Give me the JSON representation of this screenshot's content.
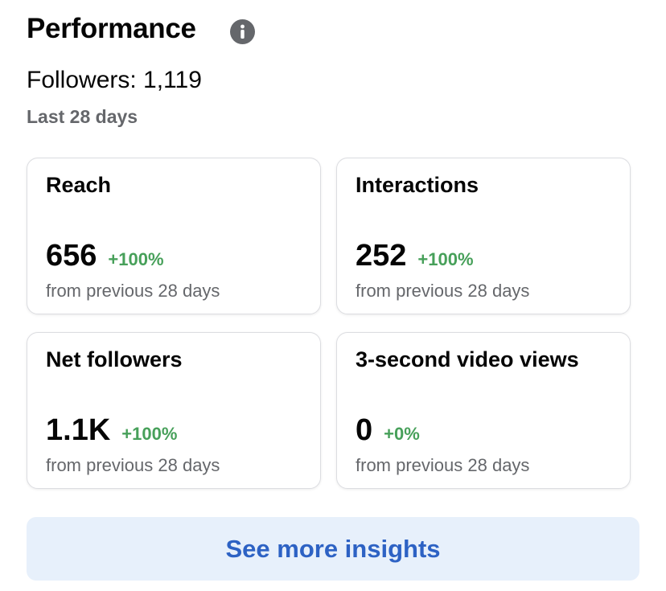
{
  "header": {
    "title": "Performance",
    "followers": "Followers: 1,119",
    "period": "Last 28 days"
  },
  "cards": [
    {
      "label": "Reach",
      "value": "656",
      "change": "+100%",
      "note": "from previous 28 days"
    },
    {
      "label": "Interactions",
      "value": "252",
      "change": "+100%",
      "note": "from previous 28 days"
    },
    {
      "label": "Net followers",
      "value": "1.1K",
      "change": "+100%",
      "note": "from previous 28 days"
    },
    {
      "label": "3-second video views",
      "value": "0",
      "change": "+0%",
      "note": "from previous 28 days"
    }
  ],
  "button": {
    "label": "See more insights"
  }
}
